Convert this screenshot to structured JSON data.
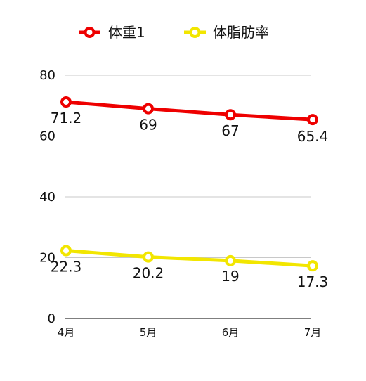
{
  "chart_data": {
    "type": "line",
    "categories": [
      "4月",
      "5月",
      "6月",
      "7月"
    ],
    "series": [
      {
        "name": "体重1",
        "values": [
          71.2,
          69,
          67,
          65.4
        ],
        "labels": [
          "71.2",
          "69",
          "67",
          "65.4"
        ],
        "color": "#ee0000"
      },
      {
        "name": "体脂肪率",
        "values": [
          22.3,
          20.2,
          19,
          17.3
        ],
        "labels": [
          "22.3",
          "20.2",
          "19",
          "17.3"
        ],
        "color": "#f2e600"
      }
    ],
    "ylim": [
      0,
      80
    ],
    "yticks": [
      "0",
      "20",
      "40",
      "60",
      "80"
    ],
    "grid": true,
    "legend_position": "top"
  }
}
